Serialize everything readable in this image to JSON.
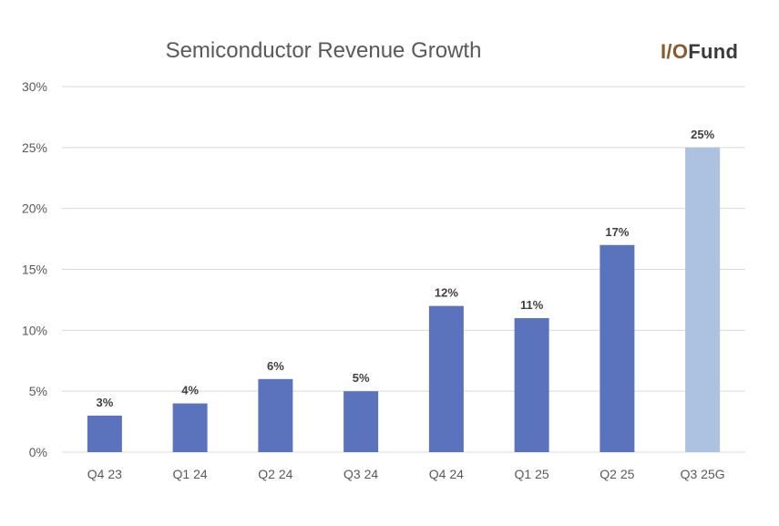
{
  "logo": {
    "part1": "I/O",
    "part2": "Fund"
  },
  "chart_data": {
    "type": "bar",
    "title": "Semiconductor Revenue Growth",
    "xlabel": "",
    "ylabel": "",
    "categories": [
      "Q4 23",
      "Q1 24",
      "Q2 24",
      "Q3 24",
      "Q4 24",
      "Q1 25",
      "Q2 25",
      "Q3 25G"
    ],
    "values": [
      3,
      4,
      6,
      5,
      12,
      11,
      17,
      25
    ],
    "data_labels": [
      "3%",
      "4%",
      "6%",
      "5%",
      "12%",
      "11%",
      "17%",
      "25%"
    ],
    "ylim": [
      0,
      30
    ],
    "yticks": [
      0,
      5,
      10,
      15,
      20,
      25,
      30
    ],
    "ytick_labels": [
      "0%",
      "5%",
      "10%",
      "15%",
      "20%",
      "25%",
      "30%"
    ],
    "grid": true,
    "legend": "none",
    "colors": {
      "bar": "#5b73bd",
      "highlight_bar": "#adc1e1",
      "highlight_index": 7,
      "gridline": "#d9d9d9",
      "text": "#595959"
    }
  }
}
